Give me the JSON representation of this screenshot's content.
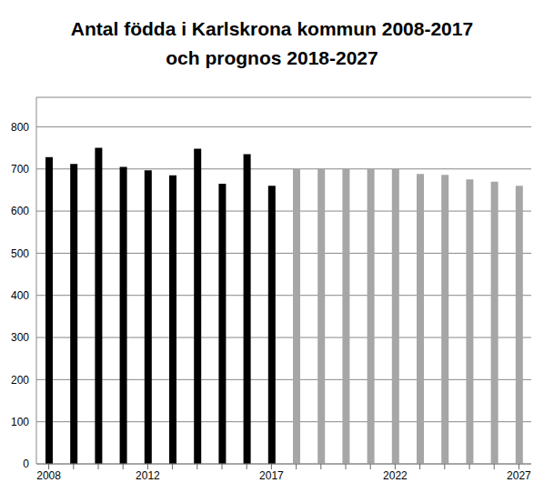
{
  "chart_data": {
    "type": "bar",
    "title": "Antal födda i Karlskrona kommun 2008-2017",
    "subtitle": "och prognos 2018-2027",
    "categories": [
      "2008",
      null,
      null,
      null,
      "2012",
      null,
      null,
      null,
      null,
      "2017",
      null,
      null,
      null,
      null,
      "2022",
      null,
      null,
      null,
      null,
      "2027"
    ],
    "values": [
      728,
      712,
      750,
      705,
      697,
      685,
      748,
      665,
      735,
      660,
      700,
      700,
      700,
      700,
      700,
      688,
      686,
      675,
      670,
      660
    ],
    "colors": [
      "#000000",
      "#000000",
      "#000000",
      "#000000",
      "#000000",
      "#000000",
      "#000000",
      "#000000",
      "#000000",
      "#000000",
      "#a6a6a6",
      "#a6a6a6",
      "#a6a6a6",
      "#a6a6a6",
      "#a6a6a6",
      "#a6a6a6",
      "#a6a6a6",
      "#a6a6a6",
      "#a6a6a6",
      "#a6a6a6"
    ],
    "ylim": [
      0,
      870
    ],
    "yticks": [
      0,
      100,
      200,
      300,
      400,
      500,
      600,
      700,
      800
    ],
    "grid": true
  }
}
